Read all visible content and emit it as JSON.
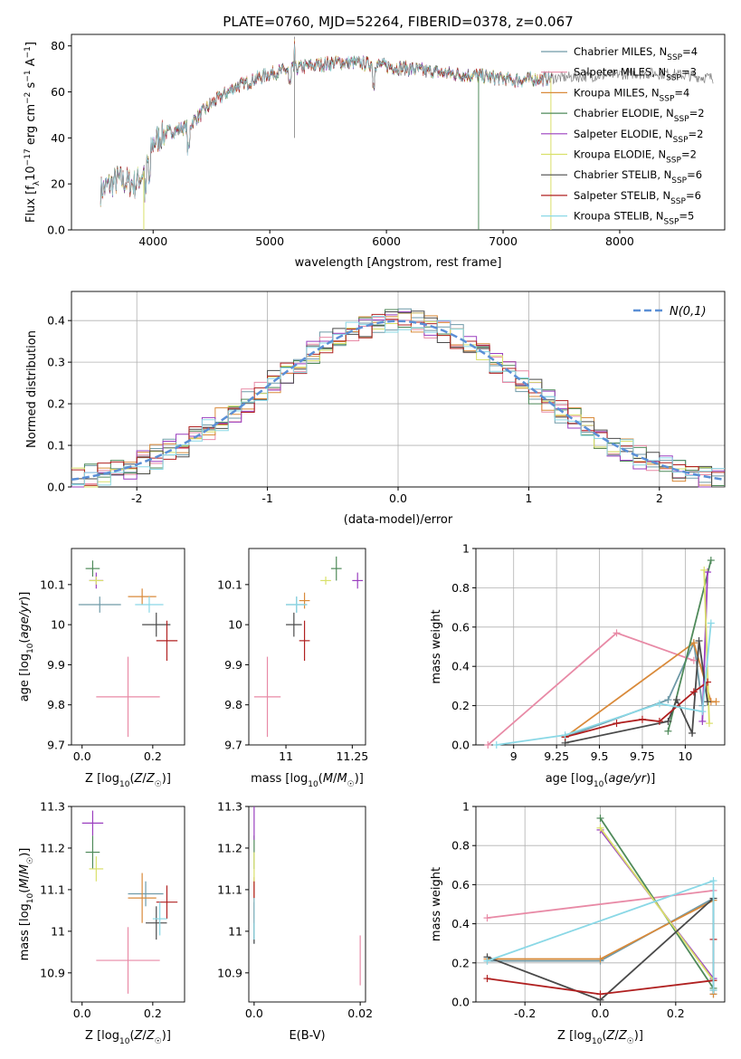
{
  "figure": {
    "title": "PLATE=0760, MJD=52264, FIBERID=0378, z=0.067"
  },
  "colors": {
    "model_colors": [
      "#6f9aa8",
      "#e88aa6",
      "#d98a3a",
      "#4f8a5a",
      "#9a3fbf",
      "#d9e06a",
      "#4a4a4a",
      "#b02020",
      "#8ad8e6"
    ],
    "gaussian": "#5b8fd6",
    "data_spectrum": "#7f7f7f"
  },
  "chart_data": [
    {
      "id": "spectrum",
      "type": "line",
      "xlabel": "wavelength [Angstrom, rest frame]",
      "ylabel": "Flux [f_λ 10^-17 erg cm^-2 s^-1 A^-1]",
      "xlim": [
        3300,
        8900
      ],
      "ylim": [
        0,
        85
      ],
      "xticks": [
        4000,
        5000,
        6000,
        7000,
        8000
      ],
      "yticks": [
        0,
        20,
        40,
        60,
        80
      ],
      "legend": "upper right",
      "grid": false,
      "series": [
        {
          "name": "Chabrier MILES, N_SSP=4"
        },
        {
          "name": "Salpeter MILES, N_SSP=3"
        },
        {
          "name": "Kroupa MILES, N_SSP=4"
        },
        {
          "name": "Chabrier ELODIE, N_SSP=2"
        },
        {
          "name": "Salpeter ELODIE, N_SSP=2"
        },
        {
          "name": "Kroupa ELODIE, N_SSP=2"
        },
        {
          "name": "Chabrier STELIB, N_SSP=6"
        },
        {
          "name": "Salpeter STELIB, N_SSP=6"
        },
        {
          "name": "Kroupa STELIB, N_SSP=5"
        }
      ],
      "continuum": {
        "x": [
          3550,
          3700,
          3850,
          3950,
          4000,
          4100,
          4300,
          4500,
          4700,
          5000,
          5300,
          5600,
          5900,
          6200,
          6500,
          6800,
          7100,
          7400,
          7800,
          8100,
          8400,
          8800
        ],
        "y": [
          17,
          22,
          20,
          28,
          38,
          42,
          45,
          55,
          62,
          68,
          71,
          73,
          72,
          70,
          68,
          67,
          65,
          66,
          67,
          68,
          68,
          66
        ]
      },
      "model_x_end": [
        7420,
        7420,
        7420,
        7420,
        7420,
        7420,
        7420,
        7420,
        7420
      ],
      "drops": [
        3920,
        6790,
        7410
      ]
    },
    {
      "id": "residuals",
      "type": "area",
      "xlabel": "(data-model)/error",
      "ylabel": "Normed distribution",
      "xlim": [
        -2.5,
        2.5
      ],
      "ylim": [
        0,
        0.47
      ],
      "xticks": [
        -2,
        -1,
        0,
        1,
        2
      ],
      "yticks": [
        0.0,
        0.1,
        0.2,
        0.3,
        0.4
      ],
      "grid": true,
      "legend": "upper right",
      "gaussian_name": "N(0,1)",
      "bin_width": 0.1
    },
    {
      "id": "age_vs_Z",
      "type": "scatter",
      "xlabel": "Z [log10(Z/Z☉)]",
      "ylabel": "age  [log10(age/yr)]",
      "xlim": [
        -0.03,
        0.29
      ],
      "ylim": [
        9.7,
        10.19
      ],
      "xticks": [
        0.0,
        0.2
      ],
      "yticks": [
        9.7,
        9.8,
        9.9,
        10.0,
        10.1
      ],
      "points": [
        {
          "x": 0.05,
          "y": 10.05,
          "xerr": 0.06,
          "yerr": 0.02
        },
        {
          "x": 0.13,
          "y": 9.82,
          "xerr": 0.09,
          "yerr": 0.1
        },
        {
          "x": 0.17,
          "y": 10.07,
          "xerr": 0.04,
          "yerr": 0.02
        },
        {
          "x": 0.03,
          "y": 10.14,
          "xerr": 0.02,
          "yerr": 0.02
        },
        {
          "x": 0.04,
          "y": 10.11,
          "xerr": 0.02,
          "yerr": 0.02
        },
        {
          "x": 0.04,
          "y": 10.11,
          "xerr": 0.02,
          "yerr": 0.01
        },
        {
          "x": 0.21,
          "y": 10.0,
          "xerr": 0.04,
          "yerr": 0.03
        },
        {
          "x": 0.24,
          "y": 9.96,
          "xerr": 0.03,
          "yerr": 0.05
        },
        {
          "x": 0.19,
          "y": 10.05,
          "xerr": 0.04,
          "yerr": 0.02
        }
      ]
    },
    {
      "id": "age_vs_mass",
      "type": "scatter",
      "xlabel": "mass [log10(M/M☉)]",
      "ylabel": "",
      "xlim": [
        10.86,
        11.3
      ],
      "ylim": [
        9.7,
        10.19
      ],
      "xticks": [
        11.0,
        11.25
      ],
      "yticks": [
        9.7,
        9.8,
        9.9,
        10.0,
        10.1
      ],
      "points": [
        {
          "x": 11.04,
          "y": 10.05,
          "xerr": 0.04,
          "yerr": 0.02
        },
        {
          "x": 10.93,
          "y": 9.82,
          "xerr": 0.05,
          "yerr": 0.1
        },
        {
          "x": 11.07,
          "y": 10.06,
          "xerr": 0.02,
          "yerr": 0.02
        },
        {
          "x": 11.19,
          "y": 10.14,
          "xerr": 0.02,
          "yerr": 0.03
        },
        {
          "x": 11.27,
          "y": 10.11,
          "xerr": 0.02,
          "yerr": 0.02
        },
        {
          "x": 11.15,
          "y": 10.11,
          "xerr": 0.02,
          "yerr": 0.01
        },
        {
          "x": 11.03,
          "y": 10.0,
          "xerr": 0.03,
          "yerr": 0.03
        },
        {
          "x": 11.07,
          "y": 9.96,
          "xerr": 0.02,
          "yerr": 0.05
        },
        {
          "x": 11.04,
          "y": 10.05,
          "xerr": 0.04,
          "yerr": 0.02
        }
      ]
    },
    {
      "id": "weight_vs_age",
      "type": "line",
      "xlabel": "age  [log10(age/yr)]",
      "ylabel": "mass weight",
      "xlim": [
        8.78,
        10.23
      ],
      "ylim": [
        0,
        1
      ],
      "xticks": [
        9.0,
        9.25,
        9.5,
        9.75,
        10.0
      ],
      "yticks": [
        0.0,
        0.2,
        0.4,
        0.6,
        0.8,
        1.0
      ],
      "grid": true,
      "series": [
        {
          "x": [
            9.3,
            9.9,
            10.05,
            10.1
          ],
          "y": [
            0.04,
            0.23,
            0.52,
            0.2
          ]
        },
        {
          "x": [
            8.85,
            9.6,
            10.05
          ],
          "y": [
            0.0,
            0.57,
            0.43
          ]
        },
        {
          "x": [
            9.3,
            10.05,
            10.15,
            10.18
          ],
          "y": [
            0.04,
            0.52,
            0.22,
            0.22
          ]
        },
        {
          "x": [
            9.9,
            10.15
          ],
          "y": [
            0.07,
            0.94
          ]
        },
        {
          "x": [
            10.1,
            10.13
          ],
          "y": [
            0.12,
            0.88
          ]
        },
        {
          "x": [
            10.11,
            10.14
          ],
          "y": [
            0.89,
            0.11
          ]
        },
        {
          "x": [
            9.3,
            9.9,
            9.95,
            10.04,
            10.08,
            10.13
          ],
          "y": [
            0.01,
            0.12,
            0.23,
            0.06,
            0.53,
            0.22
          ]
        },
        {
          "x": [
            9.3,
            9.6,
            9.75,
            9.85,
            10.05,
            10.13
          ],
          "y": [
            0.04,
            0.11,
            0.13,
            0.12,
            0.27,
            0.32
          ]
        },
        {
          "x": [
            8.9,
            9.3,
            9.85,
            10.1,
            10.15
          ],
          "y": [
            0.0,
            0.05,
            0.21,
            0.17,
            0.62
          ]
        }
      ]
    },
    {
      "id": "mass_vs_Z",
      "type": "scatter",
      "xlabel": "Z [log10(Z/Z☉)]",
      "ylabel": "mass [log10(M/M☉)]",
      "xlim": [
        -0.03,
        0.29
      ],
      "ylim": [
        10.83,
        11.3
      ],
      "xticks": [
        0.0,
        0.2
      ],
      "yticks": [
        10.9,
        11.0,
        11.1,
        11.2,
        11.3
      ],
      "points": [
        {
          "x": 0.18,
          "y": 11.09,
          "xerr": 0.05,
          "yerr": 0.03
        },
        {
          "x": 0.13,
          "y": 10.93,
          "xerr": 0.09,
          "yerr": 0.08
        },
        {
          "x": 0.17,
          "y": 11.08,
          "xerr": 0.04,
          "yerr": 0.06
        },
        {
          "x": 0.03,
          "y": 11.19,
          "xerr": 0.02,
          "yerr": 0.04
        },
        {
          "x": 0.03,
          "y": 11.26,
          "xerr": 0.03,
          "yerr": 0.03
        },
        {
          "x": 0.04,
          "y": 11.15,
          "xerr": 0.02,
          "yerr": 0.03
        },
        {
          "x": 0.21,
          "y": 11.02,
          "xerr": 0.03,
          "yerr": 0.04
        },
        {
          "x": 0.24,
          "y": 11.07,
          "xerr": 0.03,
          "yerr": 0.04
        },
        {
          "x": 0.22,
          "y": 11.03,
          "xerr": 0.02,
          "yerr": 0.04
        }
      ]
    },
    {
      "id": "mass_vs_EBV",
      "type": "scatter",
      "xlabel": "E(B-V)",
      "ylabel": "",
      "xlim": [
        -0.001,
        0.021
      ],
      "ylim": [
        10.83,
        11.3
      ],
      "xticks": [
        0.0,
        0.02
      ],
      "yticks": [
        10.9,
        11.0,
        11.1,
        11.2,
        11.3
      ],
      "points": [
        {
          "x": 0.0,
          "y": 11.02,
          "xerr": 0.0,
          "yerr": 0.05
        },
        {
          "x": 0.02,
          "y": 10.93,
          "xerr": 0.0,
          "yerr": 0.06
        },
        {
          "x": 0.0,
          "y": 11.08,
          "xerr": 0.0,
          "yerr": 0.05
        },
        {
          "x": 0.0,
          "y": 11.19,
          "xerr": 0.0,
          "yerr": 0.04
        },
        {
          "x": 0.0,
          "y": 11.26,
          "xerr": 0.0,
          "yerr": 0.04
        },
        {
          "x": 0.0,
          "y": 11.15,
          "xerr": 0.0,
          "yerr": 0.04
        },
        {
          "x": 0.0,
          "y": 11.02,
          "xerr": 0.0,
          "yerr": 0.05
        },
        {
          "x": 0.0,
          "y": 11.07,
          "xerr": 0.0,
          "yerr": 0.05
        },
        {
          "x": 0.0,
          "y": 11.03,
          "xerr": 0.0,
          "yerr": 0.05
        }
      ]
    },
    {
      "id": "weight_vs_Z",
      "type": "line",
      "xlabel": "Z [log10(Z/Z☉)]",
      "ylabel": "mass weight",
      "xlim": [
        -0.33,
        0.33
      ],
      "ylim": [
        0,
        1
      ],
      "xticks": [
        -0.2,
        0.0,
        0.2
      ],
      "yticks": [
        0.0,
        0.2,
        0.4,
        0.6,
        0.8,
        1.0
      ],
      "grid": true,
      "series": [
        {
          "x": [
            -0.3,
            0.0,
            0.3,
            0.3
          ],
          "y": [
            0.21,
            0.21,
            0.53,
            0.04
          ]
        },
        {
          "x": [
            -0.3,
            0.3
          ],
          "y": [
            0.43,
            0.57
          ]
        },
        {
          "x": [
            -0.3,
            0.0,
            0.3,
            0.3
          ],
          "y": [
            0.22,
            0.22,
            0.52,
            0.04
          ]
        },
        {
          "x": [
            0.0,
            0.3
          ],
          "y": [
            0.94,
            0.07
          ]
        },
        {
          "x": [
            0.0,
            0.3
          ],
          "y": [
            0.88,
            0.12
          ]
        },
        {
          "x": [
            0.0,
            0.3
          ],
          "y": [
            0.89,
            0.11
          ]
        },
        {
          "x": [
            -0.3,
            0.0,
            0.3,
            0.3
          ],
          "y": [
            0.23,
            0.01,
            0.53,
            0.06
          ]
        },
        {
          "x": [
            -0.3,
            0.0,
            0.3,
            0.3
          ],
          "y": [
            0.12,
            0.04,
            0.11,
            0.32
          ]
        },
        {
          "x": [
            -0.3,
            0.3,
            0.3
          ],
          "y": [
            0.21,
            0.62,
            0.06
          ]
        }
      ]
    }
  ]
}
